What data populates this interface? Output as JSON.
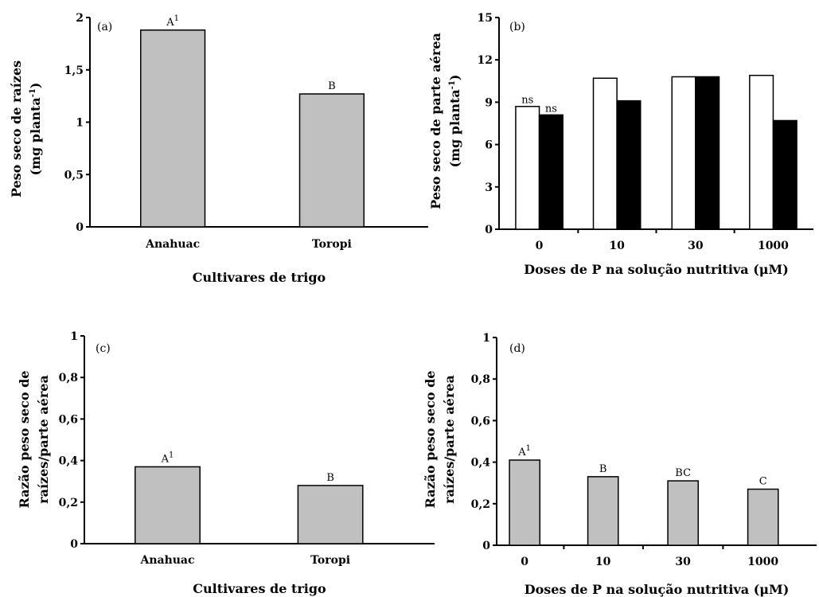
{
  "chart_data": [
    {
      "type": "bar",
      "panel": "(a)",
      "categories": [
        "Anahuac",
        "Toropi"
      ],
      "values": [
        1.88,
        1.27
      ],
      "labels": [
        "A",
        "B"
      ],
      "label_superscripts": [
        "1",
        ""
      ],
      "bar_color": "#c0c0c0",
      "ylim": [
        0,
        2
      ],
      "yticks": [
        "0",
        "0,5",
        "1",
        "1,5",
        "2"
      ],
      "ylabel_lines": [
        "Peso seco de raízes",
        "(mg planta",
        "-1",
        ")"
      ],
      "xlabel": "Cultivares de trigo"
    },
    {
      "type": "bar",
      "panel": "(b)",
      "categories": [
        "0",
        "10",
        "30",
        "1000"
      ],
      "series": [
        {
          "values": [
            8.7,
            10.7,
            10.8,
            10.9
          ],
          "color": "#ffffff"
        },
        {
          "values": [
            8.1,
            9.1,
            10.8,
            7.7
          ],
          "color": "#000000"
        }
      ],
      "annotations": [
        "ns",
        "ns"
      ],
      "ylim": [
        0,
        15
      ],
      "yticks": [
        "0",
        "3",
        "6",
        "9",
        "12",
        "15"
      ],
      "ylabel_lines": [
        "Peso seco de parte aérea",
        "(mg planta",
        "-1",
        ")"
      ],
      "xlabel": "Doses de P na solução nutritiva (μM)"
    },
    {
      "type": "bar",
      "panel": "(c)",
      "categories": [
        "Anahuac",
        "Toropi"
      ],
      "values": [
        0.37,
        0.28
      ],
      "labels": [
        "A",
        "B"
      ],
      "label_superscripts": [
        "1",
        ""
      ],
      "bar_color": "#c0c0c0",
      "ylim": [
        0,
        1
      ],
      "yticks": [
        "0",
        "0,2",
        "0,4",
        "0,6",
        "0,8",
        "1"
      ],
      "ylabel_lines": [
        "Razão peso seco de",
        "raízes/parte aérea"
      ],
      "xlabel": "Cultivares de trigo"
    },
    {
      "type": "bar",
      "panel": "(d)",
      "categories": [
        "0",
        "10",
        "30",
        "1000"
      ],
      "values": [
        0.41,
        0.33,
        0.31,
        0.27
      ],
      "labels": [
        "A",
        "B",
        "BC",
        "C"
      ],
      "label_superscripts": [
        "1",
        "",
        "",
        ""
      ],
      "bar_color": "#c0c0c0",
      "ylim": [
        0,
        1
      ],
      "yticks": [
        "0",
        "0,2",
        "0,4",
        "0,6",
        "0,8",
        "1"
      ],
      "ylabel_lines": [
        "Razão peso seco de",
        "raízes/parte aérea"
      ],
      "xlabel": "Doses de P na solução nutritiva (μM)"
    }
  ]
}
